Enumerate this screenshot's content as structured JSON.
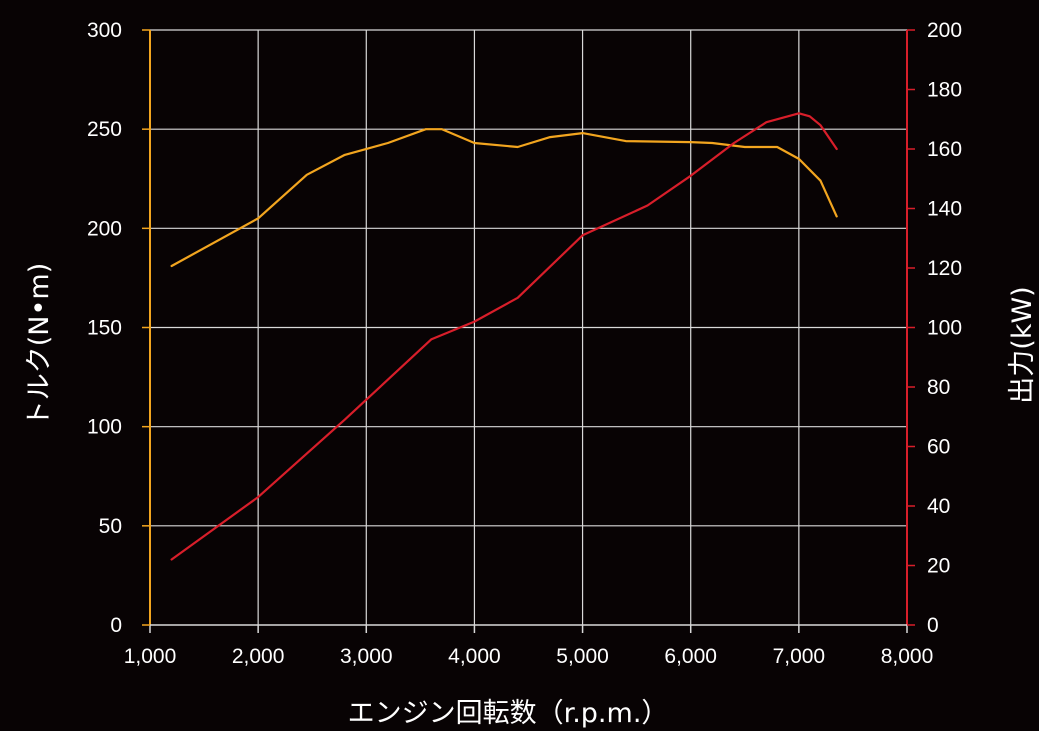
{
  "chart_data": {
    "type": "line",
    "xlabel": "エンジン回転数（r.p.m.）",
    "ylabel_left": "トルク(N•m)",
    "ylabel_right": "出力(kW)",
    "xlim": [
      1000,
      8000
    ],
    "ylim_left": [
      0,
      300
    ],
    "ylim_right": [
      0,
      200
    ],
    "x_ticks": [
      1000,
      2000,
      3000,
      4000,
      5000,
      6000,
      7000,
      8000
    ],
    "x_tick_labels": [
      "1,000",
      "2,000",
      "3,000",
      "4,000",
      "5,000",
      "6,000",
      "7,000",
      "8,000"
    ],
    "y_left_ticks": [
      0,
      50,
      100,
      150,
      200,
      250,
      300
    ],
    "y_left_tick_labels": [
      "0",
      "50",
      "100",
      "150",
      "200",
      "250",
      "300"
    ],
    "y_right_ticks": [
      0,
      20,
      40,
      60,
      80,
      100,
      120,
      140,
      160,
      180,
      200
    ],
    "y_right_tick_labels": [
      "0",
      "20",
      "40",
      "60",
      "80",
      "100",
      "120",
      "140",
      "160",
      "180",
      "200"
    ],
    "grid": true,
    "colors": {
      "background": "#080304",
      "grid": "#d9d9d9",
      "torque": "#f2a51f",
      "power": "#d81e2a",
      "text": "#ffffff"
    },
    "series": [
      {
        "axis": "left",
        "x": [
          1200,
          2000,
          2450,
          2800,
          3200,
          3550,
          3700,
          4000,
          4400,
          4700,
          5000,
          5400,
          6000,
          6200,
          6500,
          6800,
          7000,
          7200,
          7350
        ],
        "values": [
          181,
          205,
          227,
          237,
          243,
          250,
          250,
          243,
          241,
          246,
          248,
          244,
          243.5,
          243,
          241,
          241,
          235,
          224,
          206
        ]
      },
      {
        "axis": "right",
        "x": [
          1200,
          2000,
          2800,
          3600,
          4000,
          4400,
          5000,
          5600,
          6000,
          6400,
          6700,
          7000,
          7100,
          7200,
          7350
        ],
        "values": [
          22,
          43,
          69,
          96,
          102,
          110,
          131,
          141,
          151,
          162,
          169,
          172,
          171,
          168,
          160
        ]
      }
    ]
  }
}
